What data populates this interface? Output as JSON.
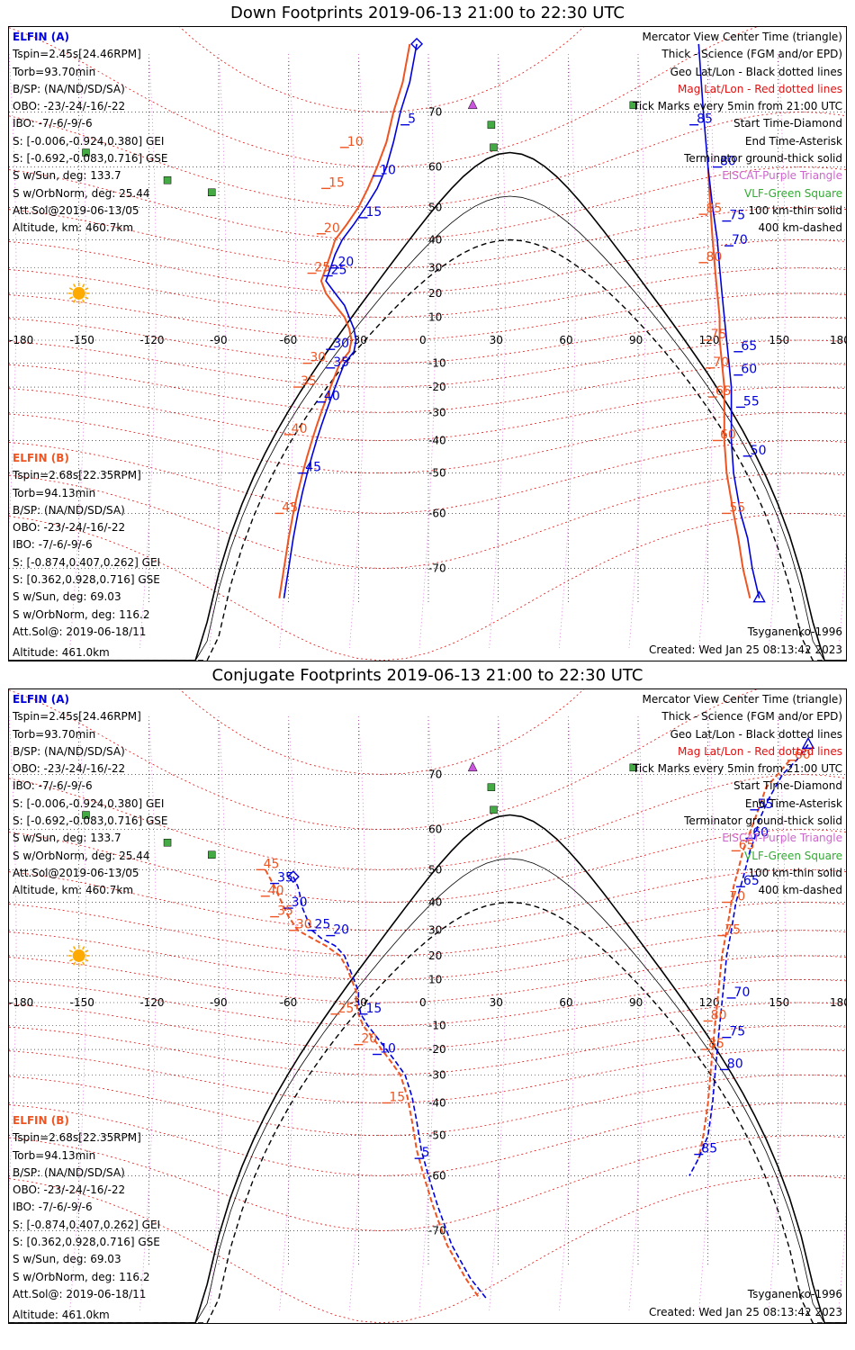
{
  "colors": {
    "blue": "#0000dd",
    "orange": "#ee5522",
    "red": "#e01010",
    "purple": "#cc66cc",
    "green": "#33aa33"
  },
  "panels": [
    {
      "title": "Down Footprints 2019-06-13 21:00 to 22:30 UTC",
      "ella": {
        "hdr": "ELFIN (A)",
        "lines": [
          "Tspin=2.45s[24.46RPM]",
          "Torb=93.70min",
          "B/SP: (NA/ND/SD/SA)",
          "OBO: -23/-24/-16/-22",
          "IBO: -7/-6/-9/-6",
          "S: [-0.006,-0.924,0.380] GEI",
          "S: [-0.692,-0.083,0.716] GSE",
          "S w/Sun, deg: 133.7",
          "S w/OrbNorm, deg: 25.44",
          "Att.Sol@2019-06-13/05",
          "Altitude, km: 460.7km"
        ]
      },
      "ellb": {
        "hdr": "ELFIN (B)",
        "lines": [
          "Tspin=2.68s[22.35RPM]",
          "Torb=94.13min",
          "B/SP: (NA/ND/SD/SA)",
          "OBO: -23/-24/-16/-22",
          "IBO: -7/-6/-9/-6",
          "S: [-0.874,0.407,0.262] GEI",
          "S: [0.362,0.928,0.716] GSE",
          "S w/Sun, deg: 69.03",
          "S w/OrbNorm, deg: 116.2",
          "Att.Sol@: 2019-06-18/11"
        ],
        "altitude": "Altitude: 461.0km"
      },
      "legend": [
        "Mercator View Center Time (triangle)",
        "Thick - Science (FGM and/or EPD)",
        "Geo Lat/Lon - Black dotted lines",
        "Mag Lat/Lon - Red dotted lines",
        "Tick Marks every 5min from 21:00 UTC",
        "Start Time-Diamond",
        "End Time-Asterisk",
        "Terminator ground-thick solid",
        "EISCAT-Purple Triangle",
        "VLF-Green Square",
        "100 km-thin solid",
        "400 km-dashed"
      ],
      "model": "Tsyganenko-1996",
      "created": "Created: Wed Jan 25 08:13:42 2023",
      "tracks": {
        "a": [
          [
            -5,
            78
          ],
          [
            -8,
            74
          ],
          [
            -12,
            70
          ],
          [
            -15,
            65
          ],
          [
            -18,
            60
          ],
          [
            -22,
            55
          ],
          [
            -27,
            50
          ],
          [
            -32,
            45
          ],
          [
            -37,
            40
          ],
          [
            -40,
            35
          ],
          [
            -42,
            30
          ],
          [
            -44,
            25
          ],
          [
            -40,
            20
          ],
          [
            -36,
            15
          ],
          [
            -34,
            10
          ],
          [
            -32,
            5
          ],
          [
            -31,
            0
          ],
          [
            -32,
            -5
          ],
          [
            -36,
            -10
          ],
          [
            -38,
            -15
          ],
          [
            -40,
            -20
          ],
          [
            -42,
            -25
          ],
          [
            -44,
            -30
          ],
          [
            -46,
            -35
          ],
          [
            -48,
            -40
          ],
          [
            -50,
            -45
          ],
          [
            -52,
            -50
          ],
          [
            -54,
            -55
          ],
          [
            -56,
            -60
          ],
          [
            -58,
            -65
          ],
          [
            -60,
            -70
          ],
          [
            -62,
            -74
          ]
        ],
        "b": [
          [
            -8,
            78
          ],
          [
            -11,
            74
          ],
          [
            -15,
            70
          ],
          [
            -18,
            65
          ],
          [
            -22,
            60
          ],
          [
            -26,
            55
          ],
          [
            -30,
            50
          ],
          [
            -35,
            45
          ],
          [
            -40,
            40
          ],
          [
            -42,
            35
          ],
          [
            -44,
            30
          ],
          [
            -46,
            25
          ],
          [
            -44,
            20
          ],
          [
            -40,
            15
          ],
          [
            -36,
            10
          ],
          [
            -34,
            5
          ],
          [
            -33,
            0
          ],
          [
            -34,
            -5
          ],
          [
            -38,
            -10
          ],
          [
            -40,
            -15
          ],
          [
            -42,
            -20
          ],
          [
            -44,
            -25
          ],
          [
            -46,
            -30
          ],
          [
            -48,
            -35
          ],
          [
            -50,
            -40
          ],
          [
            -52,
            -45
          ],
          [
            -54,
            -50
          ],
          [
            -56,
            -55
          ],
          [
            -58,
            -60
          ],
          [
            -60,
            -65
          ],
          [
            -62,
            -70
          ],
          [
            -64,
            -74
          ]
        ],
        "a2": [
          [
            142,
            -74
          ],
          [
            139,
            -70
          ],
          [
            137,
            -65
          ],
          [
            134,
            -60
          ],
          [
            131,
            -50
          ],
          [
            130,
            -40
          ],
          [
            130,
            -30
          ],
          [
            130,
            -20
          ],
          [
            129,
            -10
          ],
          [
            128,
            0
          ],
          [
            127,
            10
          ],
          [
            126,
            20
          ],
          [
            125,
            30
          ],
          [
            124,
            40
          ],
          [
            122,
            50
          ],
          [
            120,
            60
          ],
          [
            118,
            70
          ],
          [
            116,
            78
          ]
        ],
        "b2": [
          [
            138,
            -74
          ],
          [
            135,
            -70
          ],
          [
            133,
            -65
          ],
          [
            131,
            -60
          ],
          [
            128,
            -50
          ],
          [
            127,
            -40
          ],
          [
            127,
            -30
          ],
          [
            127,
            -20
          ],
          [
            126,
            -10
          ],
          [
            125,
            0
          ],
          [
            125,
            10
          ],
          [
            124,
            20
          ],
          [
            123,
            30
          ],
          [
            122,
            40
          ],
          [
            121,
            50
          ],
          [
            120,
            60
          ]
        ]
      },
      "ticks_a": [
        [
          "5",
          -10,
          68
        ],
        [
          "10",
          -22,
          58
        ],
        [
          "15",
          -28,
          47
        ],
        [
          "20",
          -40,
          30
        ],
        [
          "25",
          -43,
          27
        ],
        [
          "30",
          -42,
          -4
        ],
        [
          "35",
          -42,
          -12
        ],
        [
          "40",
          -46,
          -26
        ],
        [
          "45",
          -54,
          -50
        ]
      ],
      "ticks_b": [
        [
          "10",
          -36,
          64
        ],
        [
          "15",
          -44,
          55
        ],
        [
          "20",
          -46,
          42
        ],
        [
          "25",
          -50,
          28
        ],
        [
          "30",
          -52,
          -10
        ],
        [
          "35",
          -56,
          -20
        ],
        [
          "40",
          -60,
          -38
        ],
        [
          "45",
          -64,
          -60
        ]
      ],
      "ticks_a2": [
        [
          "85",
          114,
          68
        ],
        [
          "80",
          124,
          60
        ],
        [
          "75",
          128,
          46
        ],
        [
          "70",
          129,
          38
        ],
        [
          "65",
          133,
          -5
        ],
        [
          "60",
          133,
          -15
        ],
        [
          "55",
          134,
          -28
        ],
        [
          "50",
          137,
          -45
        ]
      ],
      "ticks_b2": [
        [
          "85",
          118,
          48
        ],
        [
          "80",
          118,
          32
        ],
        [
          "75",
          120,
          0
        ],
        [
          "70",
          121,
          -12
        ],
        [
          "65",
          122,
          -24
        ],
        [
          "60",
          124,
          -40
        ],
        [
          "55",
          128,
          -60
        ]
      ]
    },
    {
      "title": "Conjugate Footprints 2019-06-13 21:00 to 22:30 UTC",
      "ella": {
        "hdr": "ELFIN (A)",
        "lines": [
          "Tspin=2.45s[24.46RPM]",
          "Torb=93.70min",
          "B/SP: (NA/ND/SD/SA)",
          "OBO: -23/-24/-16/-22",
          "IBO: -7/-6/-9/-6",
          "S: [-0.006,-0.924,0.380] GEI",
          "S: [-0.692,-0.083,0.716] GSE",
          "S w/Sun, deg: 133.7",
          "S w/OrbNorm, deg: 25.44",
          "Att.Sol@2019-06-13/05",
          "Altitude, km: 460.7km"
        ]
      },
      "ellb": {
        "hdr": "ELFIN (B)",
        "lines": [
          "Tspin=2.68s[22.35RPM]",
          "Torb=94.13min",
          "B/SP: (NA/ND/SD/SA)",
          "OBO: -23/-24/-16/-22",
          "IBO: -7/-6/-9/-6",
          "S: [-0.874,0.407,0.262] GEI",
          "S: [0.362,0.928,0.716] GSE",
          "S w/Sun, deg: 69.03",
          "S w/OrbNorm, deg: 116.2",
          "Att.Sol@: 2019-06-18/11"
        ],
        "altitude": "Altitude: 461.0km"
      },
      "legend": [
        "Mercator View Center Time (triangle)",
        "Thick - Science (FGM and/or EPD)",
        "Geo Lat/Lon - Black dotted lines",
        "Mag Lat/Lon - Red dotted lines",
        "Tick Marks every 5min from 21:00 UTC",
        "Start Time-Diamond",
        "End Time-Asterisk",
        "Terminator ground-thick solid",
        "EISCAT-Purple Triangle",
        "VLF-Green Square",
        "100 km-thin solid",
        "400 km-dashed"
      ],
      "model": "Tsyganenko-1996",
      "created": "Created: Wed Jan 25 08:13:42 2023",
      "tracks": {
        "a": [
          [
            -58,
            48
          ],
          [
            -56,
            45
          ],
          [
            -55,
            42
          ],
          [
            -54,
            38
          ],
          [
            -52,
            34
          ],
          [
            -50,
            30
          ],
          [
            -46,
            27
          ],
          [
            -40,
            24
          ],
          [
            -36,
            20
          ],
          [
            -34,
            15
          ],
          [
            -32,
            10
          ],
          [
            -30,
            5
          ],
          [
            -30,
            0
          ],
          [
            -29,
            -5
          ],
          [
            -26,
            -10
          ],
          [
            -22,
            -15
          ],
          [
            -18,
            -20
          ],
          [
            -14,
            -25
          ],
          [
            -10,
            -30
          ],
          [
            -7,
            -38
          ],
          [
            -5,
            -46
          ],
          [
            -3,
            -54
          ],
          [
            0,
            -60
          ],
          [
            4,
            -66
          ],
          [
            10,
            -72
          ],
          [
            18,
            -76
          ],
          [
            25,
            -78
          ]
        ],
        "b": [
          [
            -70,
            50
          ],
          [
            -66,
            45
          ],
          [
            -63,
            40
          ],
          [
            -60,
            35
          ],
          [
            -56,
            30
          ],
          [
            -50,
            27
          ],
          [
            -44,
            24
          ],
          [
            -38,
            20
          ],
          [
            -35,
            15
          ],
          [
            -33,
            10
          ],
          [
            -31,
            5
          ],
          [
            -31,
            0
          ],
          [
            -30,
            -5
          ],
          [
            -28,
            -10
          ],
          [
            -24,
            -15
          ],
          [
            -20,
            -20
          ],
          [
            -16,
            -25
          ],
          [
            -12,
            -30
          ],
          [
            -9,
            -38
          ],
          [
            -7,
            -46
          ],
          [
            -5,
            -54
          ],
          [
            -2,
            -60
          ],
          [
            2,
            -66
          ],
          [
            8,
            -72
          ],
          [
            16,
            -76
          ],
          [
            22,
            -78
          ]
        ],
        "a2": [
          [
            163,
            74
          ],
          [
            158,
            72
          ],
          [
            152,
            70
          ],
          [
            146,
            66
          ],
          [
            142,
            62
          ],
          [
            140,
            58
          ],
          [
            138,
            55
          ],
          [
            136,
            50
          ],
          [
            134,
            45
          ],
          [
            132,
            40
          ],
          [
            131,
            35
          ],
          [
            130,
            30
          ],
          [
            129,
            25
          ],
          [
            128,
            20
          ],
          [
            127,
            10
          ],
          [
            126,
            0
          ],
          [
            125,
            -10
          ],
          [
            124,
            -20
          ],
          [
            123,
            -30
          ],
          [
            122,
            -40
          ],
          [
            120,
            -50
          ],
          [
            116,
            -56
          ],
          [
            112,
            -60
          ]
        ],
        "b2": [
          [
            155,
            72
          ],
          [
            150,
            70
          ],
          [
            145,
            68
          ],
          [
            140,
            62
          ],
          [
            137,
            58
          ],
          [
            135,
            55
          ],
          [
            133,
            50
          ],
          [
            131,
            45
          ],
          [
            130,
            40
          ],
          [
            129,
            35
          ],
          [
            128,
            30
          ],
          [
            127,
            25
          ],
          [
            126,
            20
          ],
          [
            125,
            10
          ],
          [
            124,
            0
          ],
          [
            123,
            -10
          ],
          [
            122,
            -20
          ],
          [
            121,
            -30
          ],
          [
            120,
            -40
          ],
          [
            118,
            -50
          ],
          [
            116,
            -56
          ]
        ]
      },
      "ticks_a": [
        [
          "35",
          -66,
          46
        ],
        [
          "30",
          -60,
          38
        ],
        [
          "25",
          -50,
          30
        ],
        [
          "20",
          -42,
          28
        ],
        [
          "15",
          -28,
          -5
        ],
        [
          "10",
          -22,
          -22
        ],
        [
          "5",
          -4,
          -56
        ]
      ],
      "ticks_b": [
        [
          "45",
          -72,
          50
        ],
        [
          "40",
          -70,
          42
        ],
        [
          "35",
          -66,
          35
        ],
        [
          "30",
          -58,
          30
        ],
        [
          "25",
          -40,
          -5
        ],
        [
          "20",
          -30,
          -18
        ],
        [
          "15",
          -18,
          -40
        ]
      ],
      "ticks_a2": [
        [
          "55",
          140,
          64
        ],
        [
          "60",
          138,
          58
        ],
        [
          "65",
          134,
          45
        ],
        [
          "70",
          130,
          2
        ],
        [
          "75",
          128,
          -15
        ],
        [
          "80",
          127,
          -28
        ],
        [
          "85",
          116,
          -55
        ]
      ],
      "ticks_b2": [
        [
          "60",
          156,
          72
        ],
        [
          "65",
          132,
          55
        ],
        [
          "70",
          128,
          40
        ],
        [
          "75",
          126,
          28
        ],
        [
          "80",
          120,
          -8
        ],
        [
          "85",
          119,
          -20
        ]
      ]
    }
  ],
  "axis": {
    "lon_labels": [
      "-180",
      "-150",
      "-120",
      "-90",
      "-60",
      "-30",
      "0",
      "30",
      "60",
      "90",
      "120",
      "150",
      "180"
    ],
    "lat_labels": [
      "70",
      "60",
      "50",
      "40",
      "30",
      "20",
      "10",
      "0",
      "-10",
      "-20",
      "-30",
      "-40",
      "-50",
      "-60",
      "-70"
    ]
  }
}
